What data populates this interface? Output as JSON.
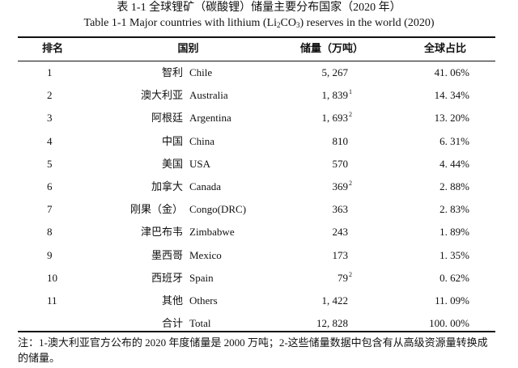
{
  "title_cn": "表 1-1  全球锂矿（碳酸锂）储量主要分布国家（2020 年）",
  "title_en": [
    "Table 1-1 Major countries with lithium (Li",
    "2",
    "CO",
    "3",
    ") reserves in the world (2020)"
  ],
  "table": {
    "header": [
      "排名",
      "国别",
      "储量（万吨）",
      "全球占比"
    ],
    "rows": [
      {
        "rank": "1",
        "cn": "智利",
        "en": "Chile",
        "reserves": "5, 267",
        "share": "41. 06%"
      },
      {
        "rank": "2",
        "cn": "澳大利亚",
        "en": "Australia",
        "reserves": "1, 839",
        "note": "1",
        "share": "14. 34%"
      },
      {
        "rank": "3",
        "cn": "阿根廷",
        "en": "Argentina",
        "reserves": "1, 693",
        "note": "2",
        "share": "13. 20%"
      },
      {
        "rank": "4",
        "cn": "中国",
        "en": "China",
        "reserves": "810",
        "share": "6. 31%"
      },
      {
        "rank": "5",
        "cn": "美国",
        "en": "USA",
        "reserves": "570",
        "share": "4. 44%"
      },
      {
        "rank": "6",
        "cn": "加拿大",
        "en": "Canada",
        "reserves": "369",
        "note": "2",
        "share": "2. 88%"
      },
      {
        "rank": "7",
        "cn": "刚果（金）",
        "en": "Congo(DRC)",
        "reserves": "363",
        "share": "2. 83%"
      },
      {
        "rank": "8",
        "cn": "津巴布韦",
        "en": "Zimbabwe",
        "reserves": "243",
        "share": "1. 89%"
      },
      {
        "rank": "9",
        "cn": "墨西哥",
        "en": "Mexico",
        "reserves": "173",
        "share": "1. 35%"
      },
      {
        "rank": "10",
        "cn": "西班牙",
        "en": "Spain",
        "reserves": "79",
        "note": "2",
        "share": "0. 62%"
      },
      {
        "rank": "11",
        "cn": "其他",
        "en": "Others",
        "reserves": "1, 422",
        "share": "11. 09%"
      },
      {
        "cn": "合计",
        "en": "Total",
        "reserves": "12, 828",
        "share": "100. 00%"
      }
    ]
  },
  "note": "注：1-澳大利亚官方公布的 2020 年度储量是 2000 万吨；2-这些储量数据中包含有从高级资源量转换成的储量。"
}
